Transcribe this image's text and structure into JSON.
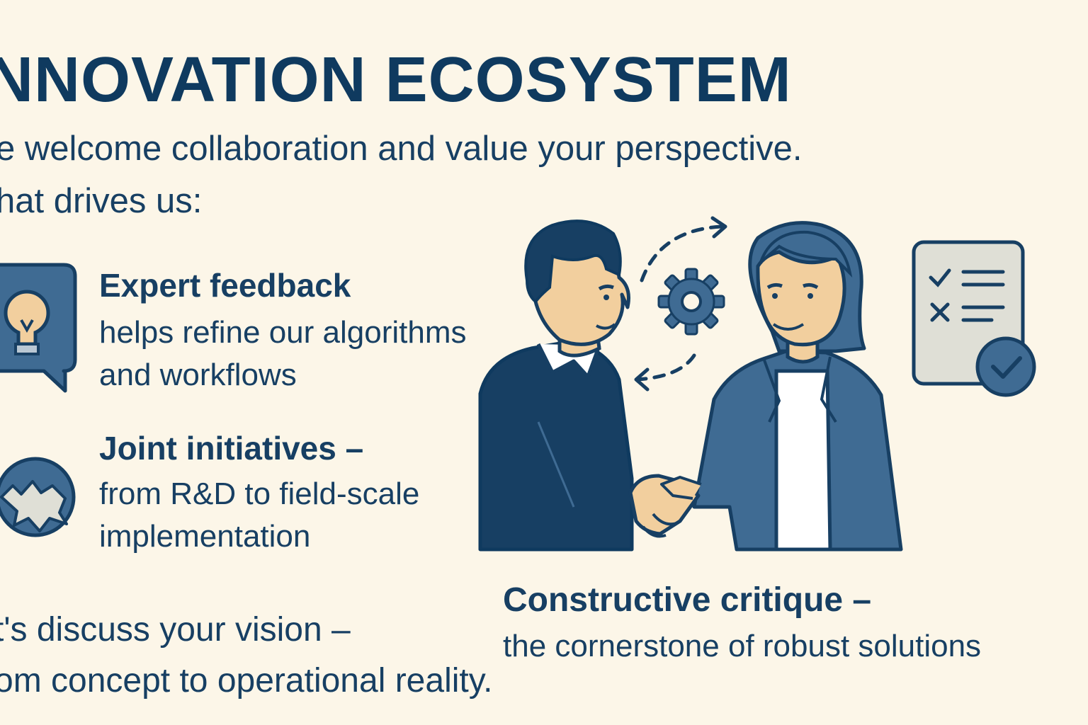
{
  "header": {
    "title": "NNOVATION ECOSYSTEM",
    "intro_line1": "e welcome collaboration and value your perspective.",
    "intro_line2": "hat drives us:"
  },
  "items": [
    {
      "icon": "lightbulb-speech-bubble-icon",
      "heading": "Expert feedback",
      "body_line1": "helps refine our algorithms",
      "body_line2": "and workflows"
    },
    {
      "icon": "puzzle-circle-icon",
      "heading": "Joint initiatives –",
      "body_line1": "from R&D to field-scale",
      "body_line2": "implementation"
    }
  ],
  "cta": {
    "line1": "t's discuss your vision –",
    "line2": "om concept to operational reality."
  },
  "critique": {
    "heading": "Constructive critique –",
    "body": "the cornerstone of robust solutions"
  },
  "illustration": {
    "figures": [
      "man-figure",
      "woman-figure",
      "handshake"
    ],
    "icons": [
      "gear-icon",
      "cycle-arrows-icon",
      "checklist-icon",
      "check-badge-icon"
    ]
  },
  "colors": {
    "background": "#fcf6e8",
    "navy": "#173f63",
    "blue": "#3f6b93",
    "skin": "#f2cf9e",
    "paper": "#dfdfd6"
  }
}
